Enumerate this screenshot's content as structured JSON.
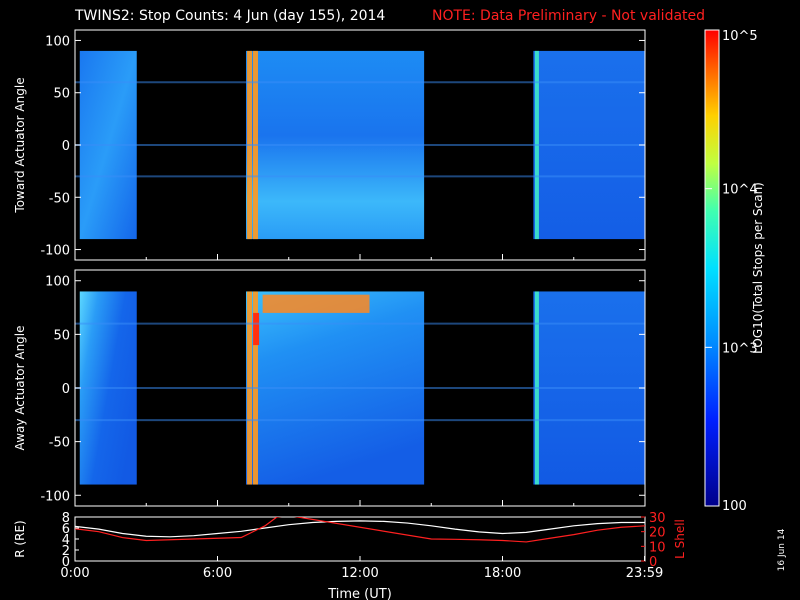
{
  "header": {
    "title": "TWINS2: Stop Counts:  4 Jun (day 155), 2014",
    "note": "NOTE: Data Preliminary - Not validated",
    "note_color": "#ff2020"
  },
  "footer": {
    "stamp": "16 Jun 14"
  },
  "colorbar": {
    "label": "LOG10(Total Stops per Scan)",
    "ticks": [
      "10^5",
      "10^4",
      "10^3",
      "100"
    ],
    "range": [
      100,
      100000
    ],
    "scale": "log"
  },
  "chart_data": [
    {
      "type": "heatmap",
      "ylabel": "Toward Actuator Angle",
      "ylim": [
        -110,
        110
      ],
      "yticks": [
        "100",
        "50",
        "0",
        "-50",
        "-100"
      ],
      "xlim": [
        0,
        24
      ],
      "data_blocks": [
        {
          "start": 0.2,
          "end": 2.6
        },
        {
          "start": 7.2,
          "end": 14.7
        },
        {
          "start": 19.3,
          "end": 23.99
        }
      ],
      "bright_bands": [
        {
          "time": 7.35,
          "level": "high"
        },
        {
          "time": 7.6,
          "level": "high"
        },
        {
          "time": 19.45,
          "level": "medium"
        }
      ]
    },
    {
      "type": "heatmap",
      "ylabel": "Away Actuator Angle",
      "ylim": [
        -110,
        110
      ],
      "yticks": [
        "100",
        "50",
        "0",
        "-50",
        "-100"
      ],
      "xlim": [
        0,
        24
      ],
      "data_blocks": [
        {
          "start": 0.2,
          "end": 2.6
        },
        {
          "start": 7.2,
          "end": 14.7
        },
        {
          "start": 19.3,
          "end": 23.99
        }
      ],
      "bright_bands": [
        {
          "time": 7.35,
          "level": "high"
        },
        {
          "time": 7.6,
          "level": "high"
        },
        {
          "time": 19.45,
          "level": "medium"
        }
      ]
    },
    {
      "type": "line",
      "xlabel": "Time (UT)",
      "xticks": [
        "0:00",
        "6:00",
        "12:00",
        "18:00",
        "23:59"
      ],
      "x_tick_values": [
        0,
        6,
        12,
        18,
        23.98
      ],
      "xlim": [
        0,
        24
      ],
      "ylabel_left": "R (RE)",
      "ylim_left": [
        0,
        8
      ],
      "yticks_left": [
        "8",
        "6",
        "4",
        "2",
        "0"
      ],
      "ylabel_right": "L Shell",
      "ylim_right": [
        0,
        30
      ],
      "yticks_right": [
        "30",
        "20",
        "10",
        "0"
      ],
      "right_color": "#ff2020",
      "series": [
        {
          "axis": "left",
          "color": "#ffffff",
          "x": [
            0,
            1,
            2,
            3,
            4,
            5,
            6,
            7,
            8,
            9,
            10,
            11,
            12,
            13,
            14,
            15,
            16,
            17,
            18,
            19,
            20,
            21,
            22,
            23,
            24
          ],
          "y": [
            6.3,
            5.8,
            5.0,
            4.5,
            4.4,
            4.6,
            5.0,
            5.4,
            6.0,
            6.6,
            7.0,
            7.2,
            7.3,
            7.2,
            6.9,
            6.4,
            5.8,
            5.3,
            5.0,
            5.2,
            5.8,
            6.4,
            6.8,
            7.0,
            7.0
          ]
        },
        {
          "axis": "right",
          "color": "#ff2020",
          "x": [
            0,
            1,
            2,
            3,
            4,
            5,
            6,
            7,
            8,
            8.5,
            9,
            15,
            16,
            17,
            18,
            19,
            20,
            21,
            22,
            23,
            24
          ],
          "y": [
            22,
            20,
            16,
            14,
            14.5,
            15,
            15.5,
            16,
            24,
            30,
            31,
            15,
            14.8,
            14.5,
            14,
            13,
            15.5,
            18,
            21,
            23,
            24
          ]
        }
      ]
    }
  ]
}
